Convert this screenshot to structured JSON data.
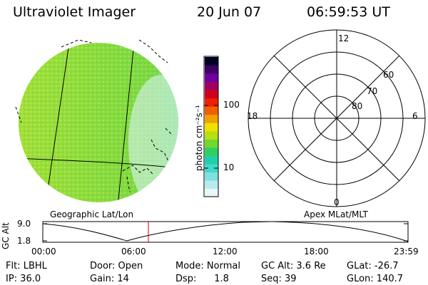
{
  "header": {
    "instrument": "Ultraviolet Imager",
    "date": "20 Jun 07",
    "time": "06:59:53 UT"
  },
  "colorbar": {
    "unit_label": "photon cm⁻²s⁻¹",
    "ticks": [
      "100",
      "10"
    ],
    "colors": [
      "#e8f8f8",
      "#b8ecec",
      "#7ee0e0",
      "#40d8c8",
      "#20d0a8",
      "#30d060",
      "#70d830",
      "#b8e010",
      "#f0e000",
      "#f0a000",
      "#f06000",
      "#f02000",
      "#d00020",
      "#a00060",
      "#7000a0",
      "#40006a",
      "#000020"
    ]
  },
  "left_panel": {
    "caption": "Geographic Lat/Lon",
    "colors": {
      "green": "#7cd83c",
      "yellow_green": "#a8e030",
      "cyan": "#38d8c8",
      "light_cyan": "#c8f0f0"
    }
  },
  "right_panel": {
    "caption": "Apex MLat/MLT",
    "mlt_labels": {
      "top": "12",
      "left": "18",
      "right": "6",
      "bottom": "0"
    },
    "lat_labels": [
      "60",
      "70",
      "80"
    ]
  },
  "altitude_plot": {
    "ylabel": "GC Alt",
    "y_ticks": [
      "9.0",
      "1.8"
    ],
    "x_ticks": [
      "00:00",
      "06:00",
      "12:00",
      "18:00",
      "23:59"
    ],
    "marker_color": "#d00000"
  },
  "info": {
    "row1": [
      "Flt: LBHL",
      "Door: Open",
      "Mode: Normal",
      "GC Alt: 3.6 Re",
      "GLat: -26.7"
    ],
    "row2": [
      "IP: 36.0",
      "Gain: 14",
      "Dsp:      1.8",
      "Seq: 39",
      "GLon: 140.7"
    ]
  }
}
